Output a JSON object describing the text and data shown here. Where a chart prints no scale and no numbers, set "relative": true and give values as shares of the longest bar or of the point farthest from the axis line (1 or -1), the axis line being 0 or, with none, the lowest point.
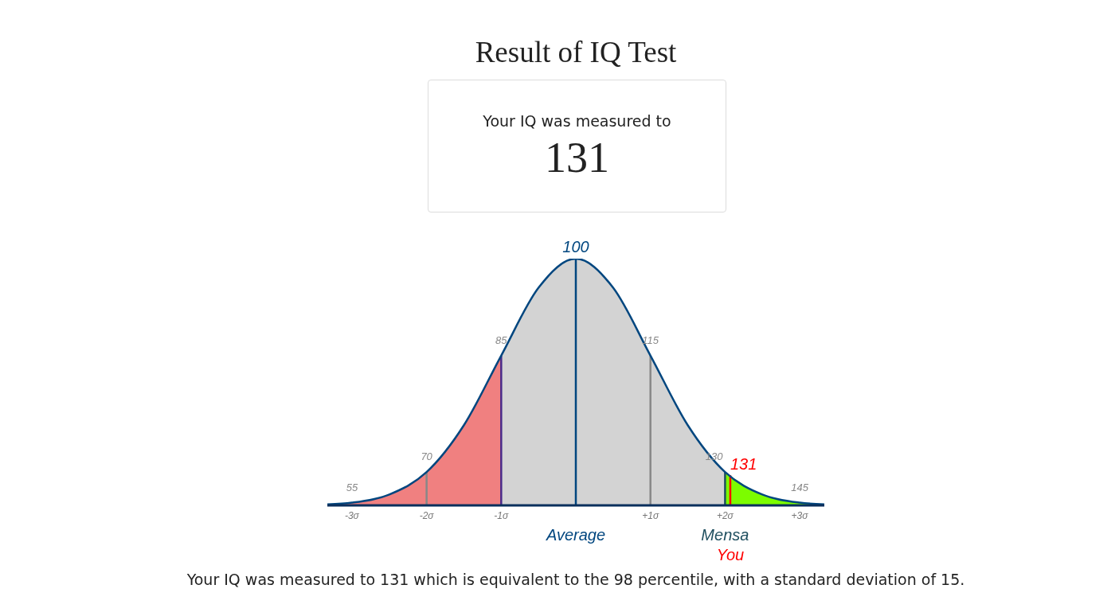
{
  "chart_data": {
    "type": "line",
    "title": "Result of IQ Test",
    "relative": true,
    "xlim": [
      -3.33,
      3.33
    ],
    "x": [
      -3.33,
      -3,
      -2.5,
      -2,
      -1.5,
      -1,
      -0.5,
      0,
      0.5,
      1,
      1.5,
      2,
      2.5,
      3,
      3.33
    ],
    "series": [
      {
        "type": "area",
        "color": "#f08080",
        "x": [
          -3.33,
          -3,
          -2.5,
          -2,
          -1.5,
          -1
        ],
        "values": [
          0.004,
          0.011,
          0.044,
          0.135,
          0.325,
          0.607
        ]
      },
      {
        "type": "area",
        "color": "#d3d3d3",
        "x": [
          -1,
          -0.5,
          0,
          0.5,
          1,
          1.5,
          2
        ],
        "values": [
          0.607,
          0.882,
          1,
          0.882,
          0.607,
          0.325,
          0.135
        ]
      },
      {
        "type": "area",
        "color": "#7cfc00",
        "x": [
          2,
          2.5,
          3,
          3.33
        ],
        "values": [
          0.135,
          0.044,
          0.011,
          0.004
        ]
      },
      {
        "color": "#00467f",
        "values": [
          0.004,
          0.011,
          0.044,
          0.135,
          0.325,
          0.607,
          0.882,
          1,
          0.882,
          0.607,
          0.325,
          0.135,
          0.044,
          0.011,
          0.004
        ]
      }
    ],
    "xticks": [
      {
        "value": -3,
        "label": "-3σ"
      },
      {
        "value": -2,
        "label": "-2σ"
      },
      {
        "value": -1,
        "label": "-1σ"
      },
      {
        "value": 1,
        "label": "+1σ"
      },
      {
        "value": 2,
        "label": "+2σ"
      },
      {
        "value": 3,
        "label": "+3σ"
      }
    ],
    "tick_labels": "x",
    "marker": "none",
    "line_style": "solid",
    "ref_lines": [
      {
        "axis": "x",
        "value": -2,
        "color": "#888888"
      },
      {
        "axis": "x",
        "value": -1,
        "color": "#4b2a8a"
      },
      {
        "axis": "x",
        "value": 0,
        "color": "#00467f",
        "label": "Average"
      },
      {
        "axis": "x",
        "value": 1,
        "color": "#888888"
      },
      {
        "axis": "x",
        "value": 2,
        "color": "#1f4f5f",
        "label": "Mensa"
      },
      {
        "axis": "x",
        "value": 2.07,
        "color": "#ff0000",
        "label": "You"
      }
    ],
    "annotations": [
      "Your IQ was measured to",
      "131",
      "Your IQ was measured to 131 which is equivalent to the 98 percentile, with a standard deviation of 15.",
      {
        "text": "55",
        "x": -3,
        "y": 0.011
      },
      {
        "text": "70",
        "x": -2,
        "y": 0.135
      },
      {
        "text": "85",
        "x": -1,
        "y": 0.607
      },
      {
        "text": "100",
        "x": 0,
        "y": 1
      },
      {
        "text": "115",
        "x": 1,
        "y": 0.607
      },
      {
        "text": "130",
        "x": 2,
        "y": 0.135
      },
      {
        "text": "131",
        "x": 2.07,
        "y": 0.118
      },
      {
        "text": "145",
        "x": 3,
        "y": 0.011
      }
    ]
  }
}
